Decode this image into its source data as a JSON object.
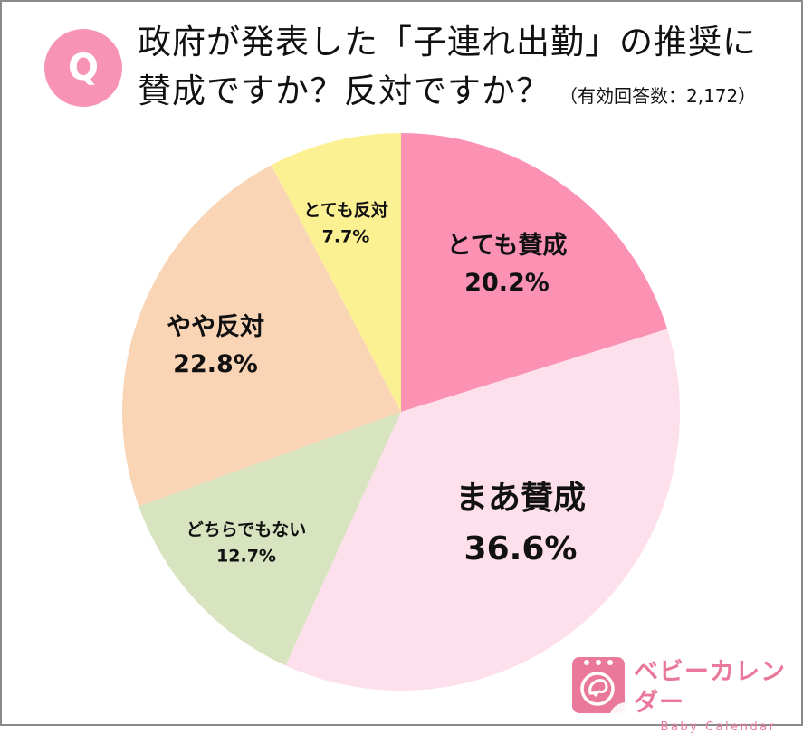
{
  "header": {
    "badge": "Q",
    "title_line1": "政府が発表した「子連れ出勤」の推奨に",
    "title_line2": "賛成ですか？反対ですか？",
    "respondents": "（有効回答数：2,172）"
  },
  "chart_data": {
    "type": "pie",
    "title": "政府が発表した「子連れ出勤」の推奨に賛成ですか？反対ですか？",
    "subtitle": "（有効回答数：2,172）",
    "categories": [
      "とても賛成",
      "まあ賛成",
      "どちらでもない",
      "やや反対",
      "とても反対"
    ],
    "values": [
      20.2,
      36.6,
      12.7,
      22.8,
      7.7
    ],
    "unit": "%",
    "colors": [
      "#fb91b3",
      "#fde0ec",
      "#d8e3bf",
      "#fad5b5",
      "#fcf192"
    ],
    "start_angle": "12 o'clock",
    "direction": "clockwise",
    "legend": "none (labels inside slices)"
  },
  "slices": [
    {
      "label": "とても賛成",
      "pct": "20.2%"
    },
    {
      "label": "まあ賛成",
      "pct": "36.6%"
    },
    {
      "label": "どちらでもない",
      "pct": "12.7%"
    },
    {
      "label": "やや反対",
      "pct": "22.8%"
    },
    {
      "label": "とても反対",
      "pct": "7.7%"
    }
  ],
  "logo": {
    "jp": "ベビーカレンダー",
    "en": "Baby Calendar",
    "color": "#e9789a"
  }
}
